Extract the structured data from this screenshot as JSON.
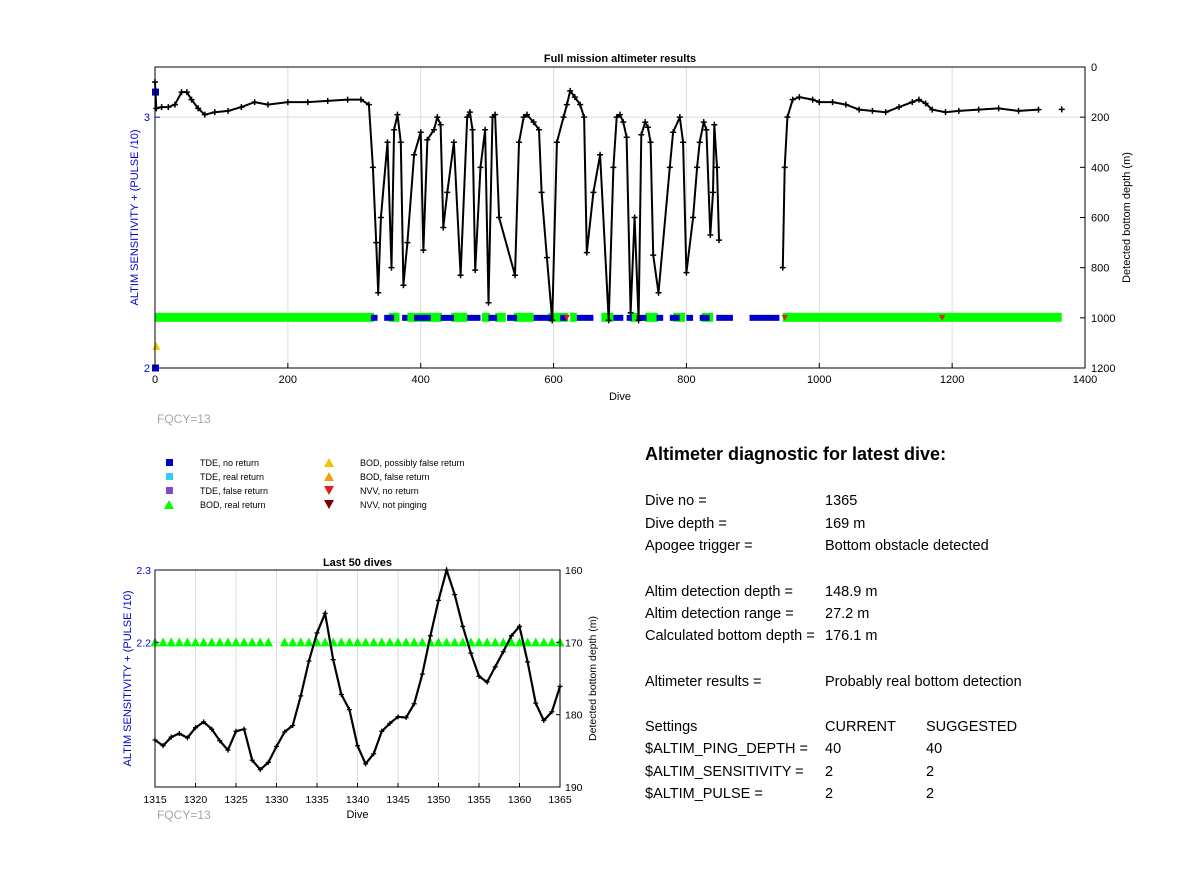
{
  "chart_data": [
    {
      "type": "scatter",
      "title": "Full mission altimeter results",
      "xlabel": "Dive",
      "ylabel_left": "ALTIM SENSITIVITY + (PULSE /10)",
      "ylabel_right": "Detected bottom depth (m)",
      "xlim": [
        0,
        1400
      ],
      "ylim_left": [
        2,
        3.2
      ],
      "ylim_right": [
        0,
        1200
      ],
      "xticks": [
        "0",
        "200",
        "400",
        "600",
        "800",
        "1000",
        "1200",
        "1400"
      ],
      "yticks_left": [
        "2",
        "3"
      ],
      "yticks_right": [
        "0",
        "200",
        "400",
        "600",
        "800",
        "1000",
        "1200"
      ],
      "grid": true,
      "bottom_depth_trace": [
        [
          0,
          60
        ],
        [
          2,
          165
        ],
        [
          10,
          160
        ],
        [
          20,
          160
        ],
        [
          30,
          150
        ],
        [
          40,
          100
        ],
        [
          48,
          100
        ],
        [
          55,
          130
        ],
        [
          65,
          165
        ],
        [
          75,
          190
        ],
        [
          90,
          180
        ],
        [
          110,
          175
        ],
        [
          130,
          160
        ],
        [
          150,
          140
        ],
        [
          170,
          150
        ],
        [
          200,
          140
        ],
        [
          230,
          140
        ],
        [
          260,
          135
        ],
        [
          290,
          130
        ],
        [
          310,
          130
        ],
        [
          322,
          150
        ],
        [
          328,
          400
        ],
        [
          333,
          700
        ],
        [
          336,
          900
        ],
        [
          340,
          600
        ],
        [
          350,
          300
        ],
        [
          356,
          800
        ],
        [
          360,
          250
        ],
        [
          365,
          190
        ],
        [
          370,
          300
        ],
        [
          374,
          870
        ],
        [
          380,
          700
        ],
        [
          390,
          350
        ],
        [
          400,
          260
        ],
        [
          404,
          730
        ],
        [
          410,
          290
        ],
        [
          420,
          250
        ],
        [
          425,
          200
        ],
        [
          430,
          230
        ],
        [
          434,
          640
        ],
        [
          440,
          500
        ],
        [
          450,
          300
        ],
        [
          460,
          830
        ],
        [
          470,
          200
        ],
        [
          474,
          180
        ],
        [
          478,
          250
        ],
        [
          482,
          810
        ],
        [
          490,
          400
        ],
        [
          497,
          250
        ],
        [
          502,
          940
        ],
        [
          508,
          200
        ],
        [
          512,
          190
        ],
        [
          518,
          600
        ],
        [
          542,
          830
        ],
        [
          548,
          300
        ],
        [
          555,
          200
        ],
        [
          560,
          190
        ],
        [
          570,
          220
        ],
        [
          578,
          250
        ],
        [
          582,
          500
        ],
        [
          590,
          760
        ],
        [
          598,
          1010
        ],
        [
          605,
          300
        ],
        [
          615,
          200
        ],
        [
          620,
          150
        ],
        [
          625,
          95
        ],
        [
          632,
          120
        ],
        [
          640,
          150
        ],
        [
          646,
          200
        ],
        [
          650,
          740
        ],
        [
          660,
          500
        ],
        [
          670,
          350
        ],
        [
          683,
          1010
        ],
        [
          690,
          400
        ],
        [
          695,
          200
        ],
        [
          700,
          190
        ],
        [
          705,
          220
        ],
        [
          710,
          280
        ],
        [
          716,
          980
        ],
        [
          722,
          600
        ],
        [
          728,
          1010
        ],
        [
          732,
          270
        ],
        [
          738,
          220
        ],
        [
          742,
          240
        ],
        [
          746,
          300
        ],
        [
          750,
          750
        ],
        [
          758,
          900
        ],
        [
          775,
          400
        ],
        [
          780,
          260
        ],
        [
          790,
          200
        ],
        [
          795,
          300
        ],
        [
          800,
          820
        ],
        [
          810,
          600
        ],
        [
          816,
          400
        ],
        [
          820,
          300
        ],
        [
          826,
          220
        ],
        [
          830,
          250
        ],
        [
          836,
          670
        ],
        [
          840,
          500
        ],
        [
          842,
          230
        ],
        [
          846,
          400
        ],
        [
          849,
          690
        ],
        [
          945,
          800
        ],
        [
          948,
          400
        ],
        [
          952,
          200
        ],
        [
          960,
          130
        ],
        [
          970,
          120
        ],
        [
          990,
          130
        ],
        [
          1000,
          140
        ],
        [
          1020,
          140
        ],
        [
          1040,
          150
        ],
        [
          1060,
          170
        ],
        [
          1080,
          175
        ],
        [
          1100,
          180
        ],
        [
          1120,
          160
        ],
        [
          1140,
          140
        ],
        [
          1150,
          130
        ],
        [
          1160,
          145
        ],
        [
          1170,
          170
        ],
        [
          1190,
          180
        ],
        [
          1210,
          175
        ],
        [
          1240,
          170
        ],
        [
          1270,
          165
        ],
        [
          1300,
          175
        ],
        [
          1330,
          170
        ],
        [
          1365,
          169
        ]
      ],
      "tde_no_return": [
        [
          0,
          3.1
        ],
        [
          0,
          2.0
        ]
      ],
      "tde_no_return_bars": [
        [
          325,
          335
        ],
        [
          345,
          360
        ],
        [
          372,
          380
        ],
        [
          390,
          415
        ],
        [
          430,
          450
        ],
        [
          470,
          490
        ],
        [
          502,
          515
        ],
        [
          530,
          545
        ],
        [
          570,
          600
        ],
        [
          610,
          620
        ],
        [
          635,
          660
        ],
        [
          690,
          705
        ],
        [
          710,
          718
        ],
        [
          725,
          740
        ],
        [
          755,
          765
        ],
        [
          775,
          790
        ],
        [
          800,
          810
        ],
        [
          820,
          835
        ],
        [
          845,
          870
        ],
        [
          895,
          940
        ]
      ],
      "bod_real_return_bars": [
        [
          0,
          330
        ],
        [
          352,
          368
        ],
        [
          380,
          392
        ],
        [
          392,
          432
        ],
        [
          446,
          470
        ],
        [
          492,
          504
        ],
        [
          512,
          528
        ],
        [
          540,
          570
        ],
        [
          592,
          622
        ],
        [
          625,
          635
        ],
        [
          672,
          690
        ],
        [
          715,
          726
        ],
        [
          738,
          757
        ],
        [
          780,
          798
        ],
        [
          823,
          840
        ],
        [
          945,
          1365
        ]
      ],
      "bod_possibly_false_return": [
        [
          2,
          2.1
        ]
      ],
      "nvv_no_return": [
        [
          620,
          2.2
        ],
        [
          948,
          2.2
        ],
        [
          1185,
          2.2
        ]
      ]
    },
    {
      "type": "line",
      "title": "Last 50 dives",
      "xlabel": "Dive",
      "ylabel_left": "ALTIM SENSITIVITY + (PULSE /10)",
      "ylabel_right": "Detected bottom depth (m)",
      "xlim": [
        1315,
        1365
      ],
      "ylim_left": [
        2.0,
        2.3
      ],
      "ylim_right": [
        160,
        190
      ],
      "xticks": [
        "1315",
        "1320",
        "1325",
        "1330",
        "1335",
        "1340",
        "1345",
        "1350",
        "1355",
        "1360",
        "1365"
      ],
      "yticks_left": [
        "2.2",
        "2.3"
      ],
      "yticks_right": [
        "160",
        "170",
        "180",
        "190"
      ],
      "grid": true,
      "dives": [
        1315,
        1316,
        1317,
        1318,
        1319,
        1320,
        1321,
        1322,
        1323,
        1324,
        1325,
        1326,
        1327,
        1328,
        1329,
        1330,
        1331,
        1332,
        1333,
        1334,
        1335,
        1336,
        1337,
        1338,
        1339,
        1340,
        1341,
        1342,
        1343,
        1344,
        1345,
        1346,
        1347,
        1348,
        1349,
        1350,
        1351,
        1352,
        1353,
        1354,
        1355,
        1356,
        1357,
        1358,
        1359,
        1360,
        1361,
        1362,
        1363,
        1364,
        1365
      ],
      "bottom_depth": [
        183.5,
        184.3,
        183.1,
        182.6,
        183.2,
        181.8,
        181.0,
        182.0,
        183.6,
        184.9,
        182.3,
        182.0,
        186.3,
        187.6,
        186.6,
        184.4,
        182.4,
        181.5,
        177.4,
        172.6,
        168.7,
        166.0,
        172.4,
        177.2,
        179.3,
        184.3,
        186.8,
        185.4,
        182.3,
        181.2,
        180.3,
        180.4,
        178.5,
        174.4,
        169.1,
        164.2,
        160.0,
        163.4,
        167.8,
        171.5,
        174.7,
        175.5,
        173.4,
        171.3,
        169.1,
        167.8,
        172.7,
        178.4,
        180.8,
        179.6,
        176.1
      ],
      "bod_real_return_dives": [
        1315,
        1316,
        1317,
        1318,
        1319,
        1320,
        1321,
        1322,
        1323,
        1324,
        1325,
        1326,
        1327,
        1328,
        1329,
        1331,
        1332,
        1333,
        1334,
        1335,
        1336,
        1337,
        1338,
        1339,
        1340,
        1341,
        1342,
        1343,
        1344,
        1345,
        1346,
        1347,
        1348,
        1349,
        1350,
        1351,
        1352,
        1353,
        1354,
        1355,
        1356,
        1357,
        1358,
        1359,
        1360,
        1361,
        1362,
        1363,
        1364,
        1365
      ],
      "bod_real_return_value": 2.2
    }
  ],
  "fqcy_top": "FQCY=13",
  "fqcy_bottom": "FQCY=13",
  "legend": [
    {
      "label": "TDE, no return",
      "color": "#0000cc",
      "shape": "square"
    },
    {
      "label": "TDE, real return",
      "color": "#33ccff",
      "shape": "square"
    },
    {
      "label": "TDE, false return",
      "color": "#8844cc",
      "shape": "square"
    },
    {
      "label": "BOD, real return",
      "color": "#00ff00",
      "shape": "triangle-up"
    },
    {
      "label": "BOD, possibly false return",
      "color": "#f5c400",
      "shape": "triangle-up"
    },
    {
      "label": "BOD, false return",
      "color": "#f39c12",
      "shape": "triangle-up"
    },
    {
      "label": "NVV, no return",
      "color": "#e02020",
      "shape": "triangle-down"
    },
    {
      "label": "NVV, not pinging",
      "color": "#7a0000",
      "shape": "triangle-down"
    }
  ],
  "diagnostic": {
    "title": "Altimeter diagnostic for latest dive:",
    "dive_no_label": "Dive no =",
    "dive_no_value": "1365",
    "dive_depth_label": "Dive depth =",
    "dive_depth_value": "169 m",
    "apogee_label": "Apogee trigger =",
    "apogee_value": "Bottom obstacle detected",
    "det_depth_label": "Altim detection depth =",
    "det_depth_value": "148.9 m",
    "det_range_label": "Altim detection range =",
    "det_range_value": "27.2 m",
    "calc_depth_label": "Calculated bottom depth =",
    "calc_depth_value": "176.1 m",
    "results_label": "Altimeter results =",
    "results_value": "Probably real bottom detection",
    "settings_header": "Settings",
    "current_header": "CURRENT",
    "suggested_header": "SUGGESTED",
    "ping_depth_label": "$ALTIM_PING_DEPTH =",
    "ping_depth_current": "40",
    "ping_depth_suggested": "40",
    "sensitivity_label": "$ALTIM_SENSITIVITY =",
    "sensitivity_current": "2",
    "sensitivity_suggested": "2",
    "pulse_label": "$ALTIM_PULSE =",
    "pulse_current": "2",
    "pulse_suggested": "2"
  },
  "colors": {
    "axis_blue": "#0000cc",
    "trace": "#000000",
    "grid": "#dddddd",
    "fqcy": "#a6a6a6"
  }
}
